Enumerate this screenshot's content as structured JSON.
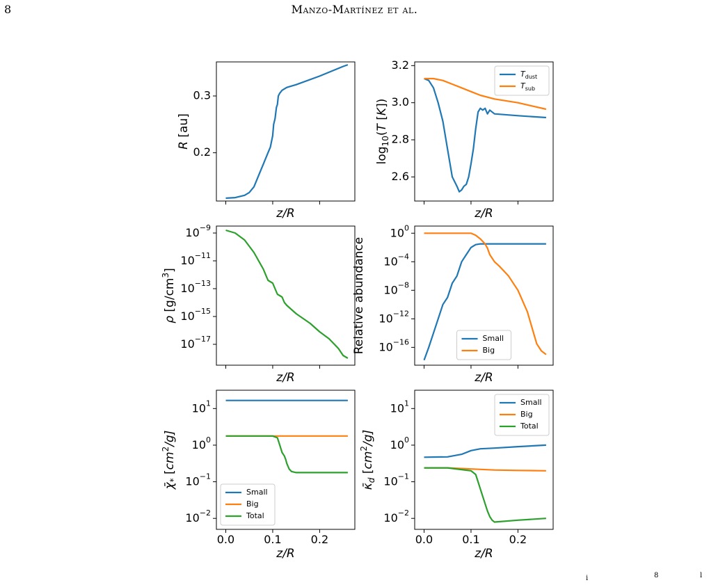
{
  "page": {
    "page_number": "8",
    "running_head": "Manzo-Martínez et al."
  },
  "footer_fragments": [
    "i",
    "8",
    "l"
  ],
  "colors": {
    "blue": "#1f77b4",
    "orange": "#ff7f0e",
    "green": "#2ca02c"
  },
  "chart_data": [
    {
      "panel": "R",
      "type": "line",
      "xlabel": "z/R",
      "ylabel": "R [au]",
      "xlim": [
        -0.02,
        0.275
      ],
      "ylim": [
        0.115,
        0.36
      ],
      "yticks": [
        0.2,
        0.3
      ],
      "ytick_labels": [
        "0.2",
        "0.3"
      ],
      "xticks": [
        0.0,
        0.1,
        0.2
      ],
      "xtick_labels": [
        "",
        "",
        ""
      ],
      "series": [
        {
          "color_key": "blue",
          "x": [
            0.0,
            0.02,
            0.04,
            0.05,
            0.06,
            0.07,
            0.075,
            0.08,
            0.085,
            0.09,
            0.095,
            0.1,
            0.102,
            0.105,
            0.108,
            0.11,
            0.112,
            0.115,
            0.12,
            0.13,
            0.15,
            0.2,
            0.25,
            0.26
          ],
          "y": [
            0.12,
            0.121,
            0.125,
            0.13,
            0.14,
            0.16,
            0.17,
            0.18,
            0.19,
            0.2,
            0.21,
            0.23,
            0.25,
            0.26,
            0.28,
            0.285,
            0.3,
            0.305,
            0.31,
            0.315,
            0.32,
            0.335,
            0.352,
            0.355
          ]
        }
      ]
    },
    {
      "panel": "T",
      "type": "line",
      "xlabel": "z/R",
      "ylabel": "log10(T [K])",
      "xlim": [
        -0.02,
        0.275
      ],
      "ylim": [
        2.47,
        3.22
      ],
      "yticks": [
        2.6,
        2.8,
        3.0,
        3.2
      ],
      "ytick_labels": [
        "2.6",
        "2.8",
        "3.0",
        "3.2"
      ],
      "xticks": [
        0.0,
        0.1,
        0.2
      ],
      "xtick_labels": [
        "",
        "",
        ""
      ],
      "legend": {
        "position": "upper-right",
        "entries": [
          "T_dust",
          "T_sub"
        ]
      },
      "series": [
        {
          "name": "T_dust",
          "color_key": "blue",
          "x": [
            0.0,
            0.01,
            0.02,
            0.03,
            0.04,
            0.05,
            0.06,
            0.07,
            0.075,
            0.08,
            0.085,
            0.09,
            0.095,
            0.1,
            0.105,
            0.11,
            0.115,
            0.12,
            0.125,
            0.13,
            0.135,
            0.14,
            0.15,
            0.2,
            0.26
          ],
          "y": [
            3.13,
            3.12,
            3.08,
            3.0,
            2.9,
            2.75,
            2.6,
            2.55,
            2.52,
            2.53,
            2.55,
            2.56,
            2.6,
            2.67,
            2.75,
            2.86,
            2.95,
            2.97,
            2.96,
            2.97,
            2.94,
            2.96,
            2.94,
            2.93,
            2.92
          ]
        },
        {
          "name": "T_sub",
          "color_key": "orange",
          "x": [
            0.0,
            0.02,
            0.04,
            0.06,
            0.08,
            0.1,
            0.12,
            0.15,
            0.2,
            0.26
          ],
          "y": [
            3.13,
            3.13,
            3.12,
            3.1,
            3.08,
            3.06,
            3.04,
            3.02,
            3.0,
            2.965
          ]
        }
      ]
    },
    {
      "panel": "rho",
      "type": "line",
      "xlabel": "z/R",
      "ylabel": "ρ [g/cm3]",
      "scale": "log",
      "xlim": [
        -0.02,
        0.275
      ],
      "ylim_log10": [
        -18.5,
        -8.5
      ],
      "yticks_log10": [
        -9,
        -11,
        -13,
        -15,
        -17
      ],
      "ytick_labels": [
        "10^-9",
        "10^-11",
        "10^-13",
        "10^-15",
        "10^-17"
      ],
      "xticks": [
        0.0,
        0.1,
        0.2
      ],
      "xtick_labels": [
        "",
        "",
        ""
      ],
      "series": [
        {
          "color_key": "green",
          "x": [
            0.0,
            0.02,
            0.04,
            0.06,
            0.08,
            0.09,
            0.1,
            0.11,
            0.12,
            0.125,
            0.13,
            0.15,
            0.18,
            0.2,
            0.22,
            0.24,
            0.25,
            0.26
          ],
          "y_log10": [
            -8.8,
            -9.0,
            -9.5,
            -10.4,
            -11.6,
            -12.4,
            -12.6,
            -13.4,
            -13.6,
            -14.0,
            -14.2,
            -14.8,
            -15.5,
            -16.1,
            -16.6,
            -17.3,
            -17.8,
            -18.0
          ]
        }
      ]
    },
    {
      "panel": "abundance",
      "type": "line",
      "xlabel": "z/R",
      "ylabel": "Relative abundance",
      "scale": "log",
      "xlim": [
        -0.02,
        0.275
      ],
      "ylim_log10": [
        -18.5,
        1.0
      ],
      "yticks_log10": [
        0,
        -4,
        -8,
        -12,
        -16
      ],
      "ytick_labels": [
        "10^0",
        "10^-4",
        "10^-8",
        "10^-12",
        "10^-16"
      ],
      "xticks": [
        0.0,
        0.1,
        0.2
      ],
      "xtick_labels": [
        "",
        "",
        ""
      ],
      "legend": {
        "position": "lower-center",
        "entries": [
          "Small",
          "Big"
        ]
      },
      "series": [
        {
          "name": "Small",
          "color_key": "blue",
          "x": [
            0.0,
            0.01,
            0.02,
            0.04,
            0.05,
            0.06,
            0.07,
            0.075,
            0.08,
            0.085,
            0.09,
            0.1,
            0.11,
            0.12,
            0.13,
            0.14,
            0.26
          ],
          "y_log10": [
            -17.8,
            -16.0,
            -14.0,
            -10.0,
            -9.0,
            -7.0,
            -6.0,
            -5.0,
            -4.0,
            -3.5,
            -3.0,
            -2.0,
            -1.6,
            -1.5,
            -1.5,
            -1.5,
            -1.5
          ]
        },
        {
          "name": "Big",
          "color_key": "orange",
          "x": [
            0.0,
            0.05,
            0.1,
            0.11,
            0.12,
            0.13,
            0.135,
            0.14,
            0.15,
            0.16,
            0.18,
            0.2,
            0.22,
            0.24,
            0.25,
            0.26
          ],
          "y_log10": [
            0.0,
            0.0,
            0.0,
            -0.3,
            -0.8,
            -1.5,
            -2.1,
            -3.0,
            -4.0,
            -4.6,
            -6.0,
            -8.0,
            -11.0,
            -15.5,
            -16.5,
            -17.0
          ]
        }
      ]
    },
    {
      "panel": "chi",
      "type": "line",
      "xlabel": "z/R",
      "ylabel": "χ̄* [cm2/g]",
      "scale": "log",
      "xlim": [
        -0.02,
        0.275
      ],
      "ylim_log10": [
        -2.3,
        1.5
      ],
      "yticks_log10": [
        1,
        0,
        -1,
        -2
      ],
      "ytick_labels": [
        "10^1",
        "10^0",
        "10^-1",
        "10^-2"
      ],
      "xticks": [
        0.0,
        0.1,
        0.2
      ],
      "xtick_labels": [
        "0.0",
        "0.1",
        "0.2"
      ],
      "legend": {
        "position": "lower-left",
        "entries": [
          "Small",
          "Big",
          "Total"
        ]
      },
      "series": [
        {
          "name": "Small",
          "color_key": "blue",
          "x": [
            0.0,
            0.26
          ],
          "y_log10": [
            1.22,
            1.22
          ]
        },
        {
          "name": "Big",
          "color_key": "orange",
          "x": [
            0.0,
            0.26
          ],
          "y_log10": [
            0.25,
            0.25
          ]
        },
        {
          "name": "Total",
          "color_key": "green",
          "x": [
            0.0,
            0.1,
            0.11,
            0.115,
            0.12,
            0.125,
            0.128,
            0.13,
            0.135,
            0.14,
            0.15,
            0.26
          ],
          "y_log10": [
            0.25,
            0.25,
            0.2,
            0.0,
            -0.2,
            -0.3,
            -0.4,
            -0.5,
            -0.65,
            -0.72,
            -0.75,
            -0.75
          ]
        }
      ]
    },
    {
      "panel": "kappa",
      "type": "line",
      "xlabel": "z/R",
      "ylabel": "κ̄d [cm2/g]",
      "scale": "log",
      "xlim": [
        -0.02,
        0.275
      ],
      "ylim_log10": [
        -2.3,
        1.5
      ],
      "yticks_log10": [
        1,
        0,
        -1,
        -2
      ],
      "ytick_labels": [
        "10^1",
        "10^0",
        "10^-1",
        "10^-2"
      ],
      "xticks": [
        0.0,
        0.1,
        0.2
      ],
      "xtick_labels": [
        "0.0",
        "0.1",
        "0.2"
      ],
      "legend": {
        "position": "upper-right",
        "entries": [
          "Small",
          "Big",
          "Total"
        ]
      },
      "series": [
        {
          "name": "Small",
          "color_key": "blue",
          "x": [
            0.0,
            0.05,
            0.08,
            0.1,
            0.12,
            0.15,
            0.2,
            0.26
          ],
          "y_log10": [
            -0.33,
            -0.32,
            -0.25,
            -0.15,
            -0.1,
            -0.08,
            -0.04,
            0.0
          ]
        },
        {
          "name": "Big",
          "color_key": "orange",
          "x": [
            0.0,
            0.05,
            0.1,
            0.15,
            0.2,
            0.26
          ],
          "y_log10": [
            -0.62,
            -0.62,
            -0.65,
            -0.68,
            -0.69,
            -0.7
          ]
        },
        {
          "name": "Total",
          "color_key": "green",
          "x": [
            0.0,
            0.05,
            0.1,
            0.11,
            0.115,
            0.12,
            0.125,
            0.13,
            0.135,
            0.14,
            0.145,
            0.15,
            0.2,
            0.26
          ],
          "y_log10": [
            -0.62,
            -0.62,
            -0.7,
            -0.8,
            -1.0,
            -1.2,
            -1.4,
            -1.6,
            -1.8,
            -1.95,
            -2.05,
            -2.1,
            -2.05,
            -2.0
          ]
        }
      ]
    }
  ]
}
